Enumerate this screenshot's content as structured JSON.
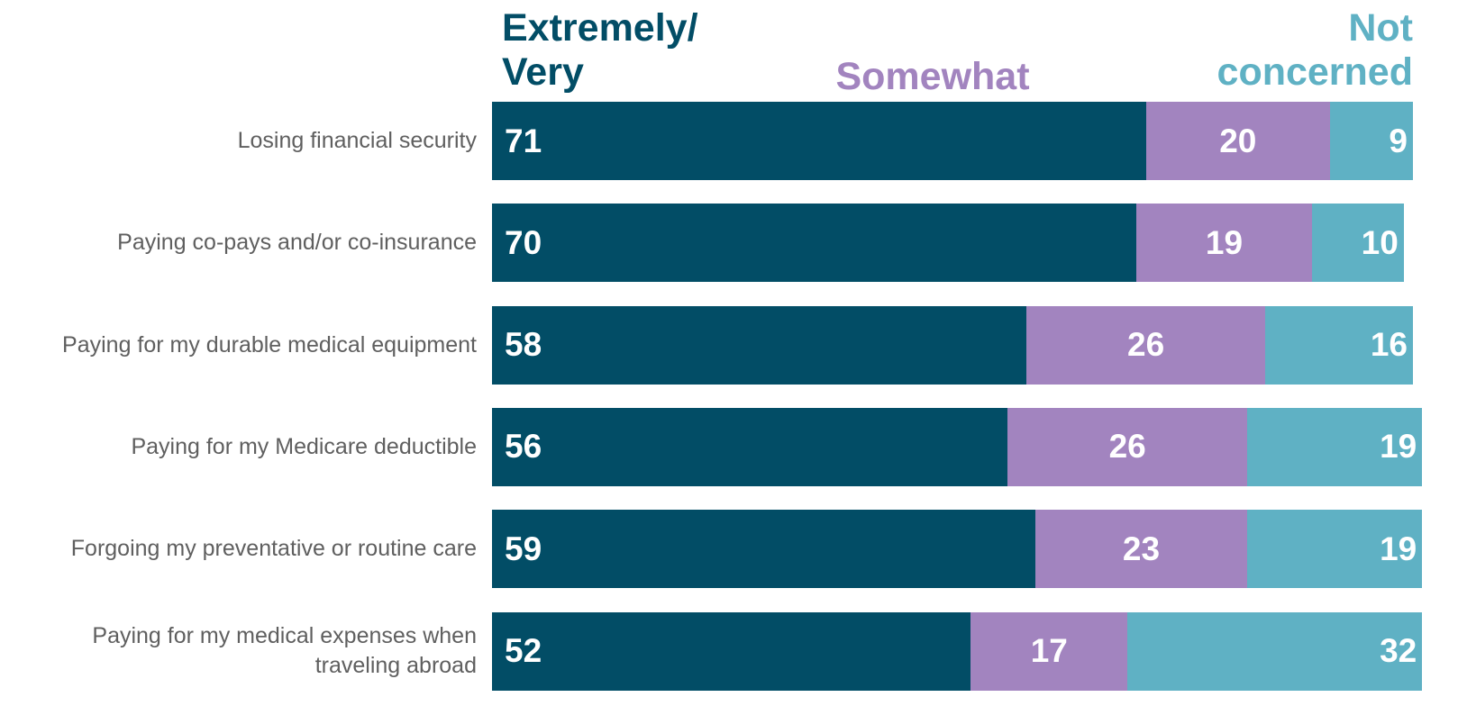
{
  "chart_data": {
    "type": "bar",
    "orientation": "horizontal",
    "stacked": true,
    "categories": [
      "Losing financial security",
      "Paying co-pays and/or co-insurance",
      "Paying for my durable medical equipment",
      "Paying for my Medicare deductible",
      "Forgoing my preventative or routine care",
      "Paying for my medical expenses when traveling abroad"
    ],
    "series": [
      {
        "name": "Extremely/ Very",
        "color": "#024d66",
        "values": [
          71,
          70,
          58,
          56,
          59,
          52
        ]
      },
      {
        "name": "Somewhat",
        "color": "#a284bf",
        "values": [
          20,
          19,
          26,
          26,
          23,
          17
        ]
      },
      {
        "name": "Not concerned",
        "color": "#5fb1c4",
        "values": [
          9,
          10,
          16,
          19,
          19,
          32
        ]
      }
    ],
    "legend_placement": "top",
    "grid": false,
    "xlim": [
      0,
      100
    ]
  }
}
